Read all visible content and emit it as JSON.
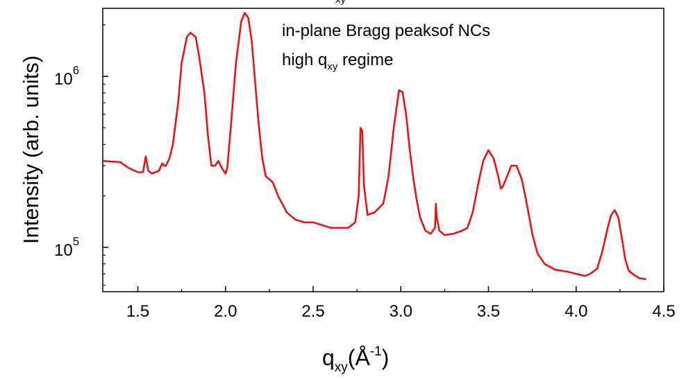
{
  "chart_data": {
    "type": "line",
    "xlim": [
      1.3,
      4.5
    ],
    "ylim": [
      55000,
      2500000
    ],
    "yscale": "log",
    "grid": false,
    "legend": "none",
    "xlabel_main": "q",
    "xlabel_sub": "xy",
    "xlabel_unit_open": "(Å",
    "xlabel_unit_sup": "-1",
    "xlabel_unit_close": ")",
    "ylabel": "Intensity (arb. units)",
    "annotation_line1": "in-plane Bragg peaksof NCs",
    "annotation_line2_main": "high q",
    "annotation_line2_sub": "xy",
    "annotation_line2_rest": " regime",
    "top_clipped_sub": "xy",
    "x_ticks": [
      {
        "value": 1.5,
        "label": "1.5"
      },
      {
        "value": 2.0,
        "label": "2.0"
      },
      {
        "value": 2.5,
        "label": "2.5"
      },
      {
        "value": 3.0,
        "label": "3.0"
      },
      {
        "value": 3.5,
        "label": "3.5"
      },
      {
        "value": 4.0,
        "label": "4.0"
      },
      {
        "value": 4.5,
        "label": "4.5"
      }
    ],
    "y_ticks": [
      {
        "value": 100000,
        "base": "10",
        "exp": "5"
      },
      {
        "value": 1000000,
        "base": "10",
        "exp": "6"
      }
    ],
    "series": [
      {
        "color": "#ee1111",
        "x": [
          1.3,
          1.4,
          1.45,
          1.5,
          1.53,
          1.545,
          1.56,
          1.58,
          1.62,
          1.64,
          1.65,
          1.66,
          1.68,
          1.7,
          1.73,
          1.75,
          1.78,
          1.8,
          1.83,
          1.85,
          1.88,
          1.9,
          1.92,
          1.94,
          1.96,
          1.98,
          2.0,
          2.01,
          2.03,
          2.06,
          2.09,
          2.11,
          2.13,
          2.15,
          2.17,
          2.19,
          2.21,
          2.23,
          2.25,
          2.27,
          2.3,
          2.35,
          2.4,
          2.45,
          2.5,
          2.55,
          2.6,
          2.65,
          2.7,
          2.74,
          2.76,
          2.77,
          2.78,
          2.79,
          2.81,
          2.85,
          2.9,
          2.93,
          2.96,
          2.99,
          3.01,
          3.03,
          3.05,
          3.07,
          3.09,
          3.11,
          3.14,
          3.17,
          3.195,
          3.2,
          3.205,
          3.22,
          3.25,
          3.3,
          3.35,
          3.38,
          3.41,
          3.44,
          3.47,
          3.5,
          3.53,
          3.56,
          3.57,
          3.58,
          3.6,
          3.63,
          3.66,
          3.69,
          3.71,
          3.73,
          3.75,
          3.78,
          3.82,
          3.88,
          3.95,
          4.0,
          4.05,
          4.08,
          4.12,
          4.15,
          4.18,
          4.2,
          4.22,
          4.24,
          4.26,
          4.28,
          4.3,
          4.33,
          4.36,
          4.4
        ],
        "y": [
          320000,
          315000,
          290000,
          275000,
          275000,
          340000,
          280000,
          270000,
          280000,
          310000,
          300000,
          300000,
          330000,
          400000,
          700000,
          1200000,
          1700000,
          1800000,
          1700000,
          1300000,
          800000,
          450000,
          300000,
          300000,
          320000,
          290000,
          270000,
          290000,
          500000,
          1200000,
          2100000,
          2350000,
          2200000,
          1600000,
          900000,
          520000,
          330000,
          260000,
          250000,
          240000,
          200000,
          160000,
          145000,
          140000,
          140000,
          135000,
          130000,
          130000,
          130000,
          140000,
          200000,
          500000,
          480000,
          230000,
          155000,
          160000,
          180000,
          260000,
          500000,
          830000,
          810000,
          600000,
          380000,
          260000,
          190000,
          150000,
          125000,
          120000,
          130000,
          180000,
          150000,
          125000,
          118000,
          120000,
          125000,
          130000,
          160000,
          230000,
          320000,
          370000,
          330000,
          250000,
          220000,
          225000,
          250000,
          300000,
          300000,
          250000,
          200000,
          155000,
          120000,
          92000,
          80000,
          74000,
          72000,
          70000,
          68000,
          70000,
          75000,
          95000,
          130000,
          155000,
          165000,
          150000,
          115000,
          85000,
          73000,
          69000,
          66000,
          65000
        ]
      }
    ]
  }
}
